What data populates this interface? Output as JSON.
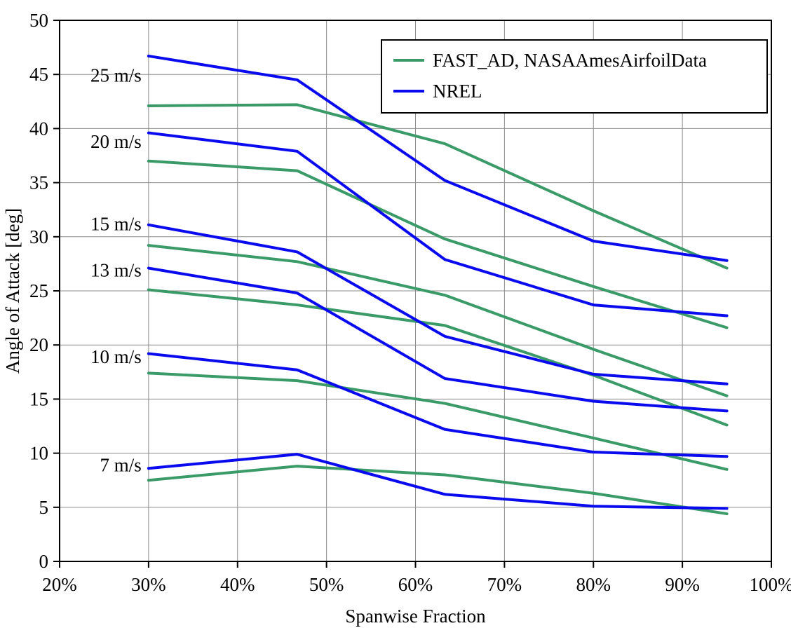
{
  "chart_data": {
    "type": "line",
    "title": "",
    "xlabel": "Spanwise Fraction",
    "ylabel": "Angle of Attack [deg]",
    "xlim": [
      20,
      100
    ],
    "ylim": [
      0,
      50
    ],
    "grid": true,
    "x_ticks": [
      20,
      30,
      40,
      50,
      60,
      70,
      80,
      90,
      100
    ],
    "x_tick_labels": [
      "20%",
      "30%",
      "40%",
      "50%",
      "60%",
      "70%",
      "80%",
      "90%",
      "100%"
    ],
    "y_ticks": [
      0,
      5,
      10,
      15,
      20,
      25,
      30,
      35,
      40,
      45,
      50
    ],
    "y_tick_labels": [
      "0",
      "5",
      "10",
      "15",
      "20",
      "25",
      "30",
      "35",
      "40",
      "45",
      "50"
    ],
    "x": [
      30,
      46.7,
      63.3,
      80,
      95
    ],
    "legend_position": "top-right-inside",
    "legend": [
      {
        "label": "FAST_AD, NASAAmesAirfoilData",
        "color": "#3a9a68",
        "series_key": "fast"
      },
      {
        "label": "NREL",
        "color": "#0a0aee",
        "series_key": "nrel"
      }
    ],
    "colors": {
      "fast": "#3a9a68",
      "nrel": "#0a0aee",
      "grid": "#8c8c8c",
      "frame": "#000000"
    },
    "annotation_label_x": 29.2,
    "groups": [
      {
        "label": "25 m/s",
        "label_y": 44.9,
        "fast": [
          42.1,
          42.2,
          38.6,
          32.4,
          27.1
        ],
        "nrel": [
          46.7,
          44.5,
          35.2,
          29.6,
          27.8
        ]
      },
      {
        "label": "20 m/s",
        "label_y": 38.8,
        "fast": [
          37.0,
          36.1,
          29.8,
          25.4,
          21.6
        ],
        "nrel": [
          39.6,
          37.9,
          27.9,
          23.7,
          22.7
        ]
      },
      {
        "label": "15 m/s",
        "label_y": 31.2,
        "fast": [
          29.2,
          27.7,
          24.6,
          19.6,
          15.3
        ],
        "nrel": [
          31.1,
          28.6,
          20.8,
          17.3,
          16.4
        ]
      },
      {
        "label": "13 m/s",
        "label_y": 26.9,
        "fast": [
          25.1,
          23.7,
          21.8,
          17.2,
          12.6
        ],
        "nrel": [
          27.1,
          24.8,
          16.9,
          14.8,
          13.9
        ]
      },
      {
        "label": "10 m/s",
        "label_y": 18.9,
        "fast": [
          17.4,
          16.7,
          14.6,
          11.4,
          8.5
        ],
        "nrel": [
          19.2,
          17.7,
          12.2,
          10.1,
          9.7
        ]
      },
      {
        "label": "7 m/s",
        "label_y": 8.9,
        "fast": [
          7.5,
          8.8,
          8.0,
          6.3,
          4.4
        ],
        "nrel": [
          8.6,
          9.9,
          6.2,
          5.1,
          4.9
        ]
      }
    ]
  }
}
